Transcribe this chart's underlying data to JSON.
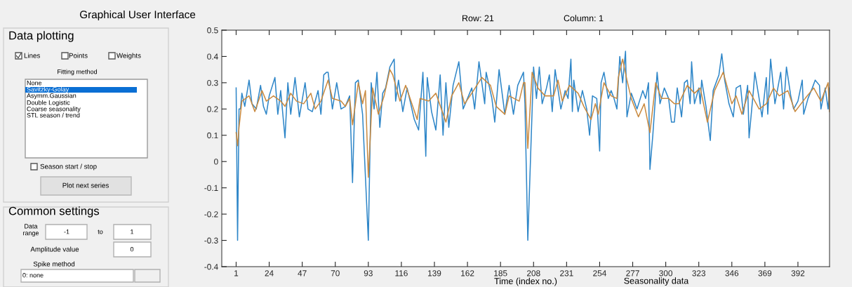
{
  "chart_data": [
    {
      "type": "other",
      "title": "Graphical User Interface",
      "annotations": [
        "Data plotting",
        "Lines",
        "Points",
        "Weights",
        "Fitting method",
        "None",
        "Savitzky-Golay",
        "Asymm.Gaussian",
        "Double Logistic",
        "Coarse seasonality",
        "STL season / trend",
        "Season start / stop",
        "Plot next series",
        "Common settings",
        "Data\nrange",
        "-1",
        "to",
        "1",
        "Amplitude value",
        "0",
        "Spike method",
        "0: none"
      ]
    },
    {
      "type": "line",
      "xlabel": "Time (index no.)",
      "annotations": [
        "Row: 21",
        "Column: 1",
        "Seasonality data"
      ],
      "xlim": [
        -9,
        414
      ],
      "ylim": [
        -0.4,
        0.5
      ],
      "xticks": [
        1,
        24,
        47,
        70,
        93,
        116,
        139,
        162,
        185,
        208,
        231,
        254,
        277,
        300,
        323,
        346,
        369,
        392
      ],
      "yticks": [
        -0.4,
        -0.3,
        -0.2,
        -0.1,
        0,
        0.1,
        0.2,
        0.3,
        0.4,
        0.5
      ],
      "grid": false,
      "line_style": "solid",
      "marker": "none",
      "series": [
        {
          "color": "#2e86c8",
          "x": [
            1,
            2,
            3,
            4,
            5,
            7,
            10,
            12,
            15,
            18,
            20,
            22,
            24,
            28,
            30,
            32,
            35,
            37,
            39,
            42,
            45,
            49,
            51,
            54,
            58,
            60,
            62,
            64,
            65,
            68,
            71,
            74,
            77,
            80,
            82,
            84,
            86,
            89,
            93,
            95,
            97,
            99,
            101,
            103,
            105,
            108,
            111,
            112,
            114,
            117,
            120,
            125,
            128,
            131,
            133,
            134,
            137,
            140,
            143,
            145,
            147,
            149,
            152,
            156,
            159,
            162,
            165,
            167,
            170,
            174,
            175,
            179,
            181,
            184,
            188,
            191,
            194,
            197,
            201,
            202,
            204,
            208,
            210,
            212,
            214,
            217,
            219,
            221,
            223,
            227,
            230,
            232,
            234,
            235,
            236,
            239,
            242,
            245,
            247,
            249,
            252,
            254,
            255,
            257,
            260,
            262,
            264,
            266,
            268,
            270,
            272,
            273,
            276,
            280,
            284,
            286,
            288,
            289,
            291,
            294,
            296,
            299,
            302,
            304,
            306,
            308,
            311,
            313,
            315,
            317,
            318,
            320,
            323,
            324,
            325,
            328,
            331,
            333,
            337,
            339,
            341,
            344,
            347,
            349,
            352,
            354,
            357,
            358,
            361,
            362,
            365,
            367,
            370,
            371,
            373,
            376,
            380,
            382,
            384,
            387,
            389,
            392,
            395,
            396,
            399,
            402,
            404,
            407,
            408,
            411,
            413,
            414
          ],
          "values": [
            0.28,
            -0.3,
            0.2,
            0.2,
            0.26,
            0.21,
            0.31,
            0.22,
            0.2,
            0.29,
            0.21,
            0.18,
            0.25,
            0.32,
            0.18,
            0.27,
            0.09,
            0.3,
            0.18,
            0.32,
            0.17,
            0.3,
            0.2,
            0.19,
            0.27,
            0.18,
            0.33,
            0.34,
            0.34,
            0.2,
            0.3,
            0.2,
            0.21,
            0.25,
            -0.08,
            0.3,
            0.31,
            0.18,
            -0.3,
            0.3,
            0.2,
            0.34,
            0.13,
            0.26,
            0.28,
            0.36,
            0.39,
            0.23,
            0.31,
            0.19,
            0.28,
            0.16,
            0.12,
            0.34,
            0.02,
            0.32,
            0.19,
            0.12,
            0.33,
            0.1,
            0.3,
            0.13,
            0.29,
            0.38,
            0.2,
            0.24,
            0.28,
            0.2,
            0.38,
            0.22,
            0.34,
            0.24,
            0.15,
            0.35,
            0.18,
            0.29,
            0.18,
            0.29,
            0.34,
            0.22,
            -0.3,
            0.36,
            0.24,
            0.36,
            0.22,
            0.28,
            0.33,
            0.19,
            0.35,
            0.2,
            0.27,
            0.24,
            0.39,
            0.19,
            0.31,
            0.19,
            0.27,
            0.2,
            0.1,
            0.25,
            0.24,
            0.04,
            0.3,
            0.34,
            0.24,
            0.27,
            0.24,
            0.2,
            0.4,
            0.3,
            0.42,
            0.17,
            0.26,
            0.2,
            0.27,
            0.24,
            0.3,
            -0.03,
            0.1,
            0.34,
            0.22,
            0.28,
            0.24,
            0.15,
            0.15,
            0.28,
            0.17,
            0.3,
            0.31,
            0.22,
            0.38,
            0.22,
            0.28,
            0.22,
            0.31,
            0.21,
            0.08,
            0.27,
            0.33,
            0.41,
            0.31,
            0.22,
            0.17,
            0.28,
            0.29,
            0.18,
            0.29,
            0.09,
            0.27,
            0.34,
            0.24,
            0.17,
            0.32,
            0.18,
            0.39,
            0.22,
            0.34,
            0.2,
            0.36,
            0.25,
            0.2,
            0.23,
            0.31,
            0.18,
            0.24,
            0.28,
            0.31,
            0.29,
            0.2,
            0.28,
            0.2,
            0.28
          ]
        },
        {
          "color": "#c98a40",
          "x": [
            1,
            2,
            3,
            5,
            10,
            14,
            19,
            22,
            27,
            32,
            35,
            39,
            43,
            48,
            53,
            56,
            60,
            65,
            68,
            74,
            77,
            80,
            82,
            86,
            89,
            91,
            93,
            96,
            100,
            104,
            108,
            110,
            115,
            119,
            127,
            129,
            135,
            140,
            147,
            151,
            156,
            160,
            165,
            172,
            178,
            182,
            188,
            191,
            198,
            201,
            202,
            204,
            207,
            211,
            216,
            222,
            225,
            228,
            233,
            239,
            243,
            248,
            251,
            253,
            257,
            262,
            266,
            267,
            270,
            273,
            276,
            281,
            285,
            289,
            293,
            297,
            302,
            306,
            309,
            315,
            320,
            324,
            329,
            334,
            340,
            346,
            349,
            353,
            358,
            365,
            370,
            375,
            379,
            385,
            390,
            397,
            403,
            408,
            413,
            414
          ],
          "values": [
            0.11,
            0.06,
            0.13,
            0.23,
            0.25,
            0.19,
            0.27,
            0.23,
            0.25,
            0.23,
            0.21,
            0.26,
            0.23,
            0.22,
            0.26,
            0.2,
            0.23,
            0.31,
            0.24,
            0.23,
            0.21,
            0.24,
            0.14,
            0.3,
            0.22,
            0.27,
            -0.06,
            0.28,
            0.18,
            0.25,
            0.35,
            0.33,
            0.23,
            0.29,
            0.16,
            0.24,
            0.23,
            0.26,
            0.15,
            0.25,
            0.3,
            0.22,
            0.26,
            0.32,
            0.29,
            0.21,
            0.18,
            0.25,
            0.23,
            0.3,
            0.3,
            0.05,
            0.34,
            0.28,
            0.25,
            0.25,
            0.31,
            0.23,
            0.29,
            0.26,
            0.21,
            0.16,
            0.22,
            0.18,
            0.3,
            0.25,
            0.24,
            0.32,
            0.39,
            0.31,
            0.24,
            0.17,
            0.22,
            0.11,
            0.3,
            0.24,
            0.24,
            0.22,
            0.22,
            0.29,
            0.26,
            0.28,
            0.15,
            0.27,
            0.34,
            0.22,
            0.25,
            0.18,
            0.27,
            0.2,
            0.22,
            0.28,
            0.25,
            0.27,
            0.19,
            0.24,
            0.28,
            0.23,
            0.3,
            0.19
          ]
        }
      ]
    }
  ]
}
